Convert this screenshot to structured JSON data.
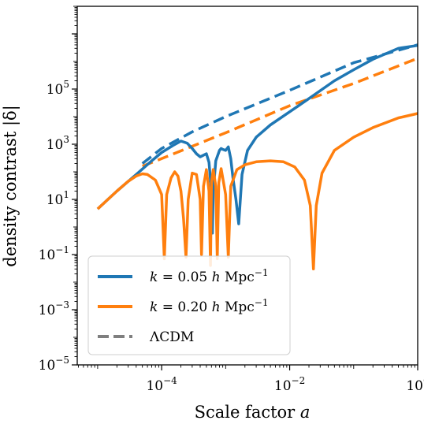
{
  "chart_data": {
    "type": "line",
    "xlabel": "Scale factor a",
    "ylabel": "density contrast |δ|",
    "xscale": "log",
    "yscale": "log",
    "xlim": [
      4.8e-06,
      1.0
    ],
    "ylim": [
      1e-05,
      100000000
    ],
    "x_ticks": [
      {
        "value": 0.0001,
        "base": "10",
        "exp": "−4"
      },
      {
        "value": 0.01,
        "base": "10",
        "exp": "−2"
      },
      {
        "value": 1,
        "base": "10",
        "exp": "0"
      }
    ],
    "y_ticks": [
      {
        "value": 1e-05,
        "base": "10",
        "exp": "−5"
      },
      {
        "value": 0.001,
        "base": "10",
        "exp": "−3"
      },
      {
        "value": 0.1,
        "base": "10",
        "exp": "−1"
      },
      {
        "value": 10,
        "base": "10",
        "exp": "1"
      },
      {
        "value": 1000,
        "base": "10",
        "exp": "3"
      },
      {
        "value": 100000,
        "base": "10",
        "exp": "5"
      }
    ],
    "grid": false,
    "legend_position": "lower-left",
    "colors": {
      "blue": "#1f77b4",
      "orange": "#ff7f0e",
      "gray": "#7f7f7f"
    },
    "series": [
      {
        "name": "k = 0.05 h Mpc⁻¹",
        "color": "#1f77b4",
        "style": "solid",
        "points": [
          [
            1e-05,
            4.5
          ],
          [
            2e-05,
            20
          ],
          [
            4e-05,
            80
          ],
          [
            7e-05,
            250
          ],
          [
            0.0001,
            500
          ],
          [
            0.00015,
            900
          ],
          [
            0.0002,
            1300
          ],
          [
            0.00025,
            1100
          ],
          [
            0.0003,
            700
          ],
          [
            0.00035,
            450
          ],
          [
            0.0004,
            350
          ],
          [
            0.00045,
            400
          ],
          [
            0.0005,
            450
          ],
          [
            0.00055,
            220
          ],
          [
            0.0006,
            20
          ],
          [
            0.00062,
            0.6
          ],
          [
            0.00064,
            20
          ],
          [
            0.0007,
            250
          ],
          [
            0.0008,
            600
          ],
          [
            0.00085,
            700
          ],
          [
            0.0009,
            650
          ],
          [
            0.001,
            600
          ],
          [
            0.0011,
            800
          ],
          [
            0.0012,
            300
          ],
          [
            0.0013,
            60
          ],
          [
            0.00145,
            10
          ],
          [
            0.0016,
            1.3
          ],
          [
            0.0018,
            80
          ],
          [
            0.0022,
            600
          ],
          [
            0.003,
            1800
          ],
          [
            0.005,
            5000
          ],
          [
            0.01,
            15000
          ],
          [
            0.02,
            45000
          ],
          [
            0.05,
            200000
          ],
          [
            0.1,
            500000
          ],
          [
            0.2,
            1200000
          ],
          [
            0.5,
            3000000
          ],
          [
            1.0,
            3800000
          ]
        ]
      },
      {
        "name": "k = 0.20 h Mpc⁻¹",
        "color": "#ff7f0e",
        "style": "solid",
        "points": [
          [
            1e-05,
            4.5
          ],
          [
            2e-05,
            20
          ],
          [
            3e-05,
            45
          ],
          [
            4e-05,
            70
          ],
          [
            5e-05,
            85
          ],
          [
            6e-05,
            80
          ],
          [
            8e-05,
            50
          ],
          [
            0.0001,
            15
          ],
          [
            0.00011,
            0.07
          ],
          [
            0.00012,
            15
          ],
          [
            0.00014,
            60
          ],
          [
            0.00016,
            100
          ],
          [
            0.00018,
            70
          ],
          [
            0.0002,
            20
          ],
          [
            0.00022,
            2
          ],
          [
            0.00024,
            0.08
          ],
          [
            0.00026,
            10
          ],
          [
            0.0003,
            90
          ],
          [
            0.00035,
            80
          ],
          [
            0.0004,
            10
          ],
          [
            0.00042,
            0.1
          ],
          [
            0.00045,
            30
          ],
          [
            0.0005,
            120
          ],
          [
            0.00055,
            20
          ],
          [
            0.00058,
            0.04
          ],
          [
            0.0006,
            40
          ],
          [
            0.00064,
            120
          ],
          [
            0.0007,
            30
          ],
          [
            0.00074,
            0.07
          ],
          [
            0.00078,
            40
          ],
          [
            0.00085,
            130
          ],
          [
            0.001,
            15
          ],
          [
            0.0011,
            0.08
          ],
          [
            0.0012,
            30
          ],
          [
            0.0015,
            120
          ],
          [
            0.002,
            180
          ],
          [
            0.003,
            230
          ],
          [
            0.005,
            250
          ],
          [
            0.008,
            230
          ],
          [
            0.012,
            150
          ],
          [
            0.017,
            50
          ],
          [
            0.021,
            6
          ],
          [
            0.0235,
            0.03
          ],
          [
            0.026,
            6
          ],
          [
            0.032,
            90
          ],
          [
            0.05,
            600
          ],
          [
            0.1,
            1800
          ],
          [
            0.2,
            4000
          ],
          [
            0.5,
            9000
          ],
          [
            1.0,
            13000
          ]
        ]
      },
      {
        "name": "ΛCDM",
        "color": "#1f77b4",
        "style": "dashed",
        "points": [
          [
            5e-05,
            200
          ],
          [
            0.0001,
            700
          ],
          [
            0.0003,
            2800
          ],
          [
            0.001,
            10000
          ],
          [
            0.01,
            90000
          ],
          [
            0.1,
            900000
          ],
          [
            1.0,
            4000000
          ]
        ]
      },
      {
        "name": "",
        "color": "#ff7f0e",
        "style": "dashed",
        "points": [
          [
            5e-05,
            160
          ],
          [
            0.0001,
            300
          ],
          [
            0.001,
            2600
          ],
          [
            0.01,
            25000
          ],
          [
            0.1,
            160000
          ],
          [
            1.0,
            1300000
          ]
        ]
      }
    ],
    "legend": [
      {
        "label": "k = 0.05 h Mpc⁻¹",
        "color": "#1f77b4",
        "style": "solid"
      },
      {
        "label": "k = 0.20 h Mpc⁻¹",
        "color": "#ff7f0e",
        "style": "solid"
      },
      {
        "label": "ΛCDM",
        "color": "#7f7f7f",
        "style": "dashed"
      }
    ]
  }
}
